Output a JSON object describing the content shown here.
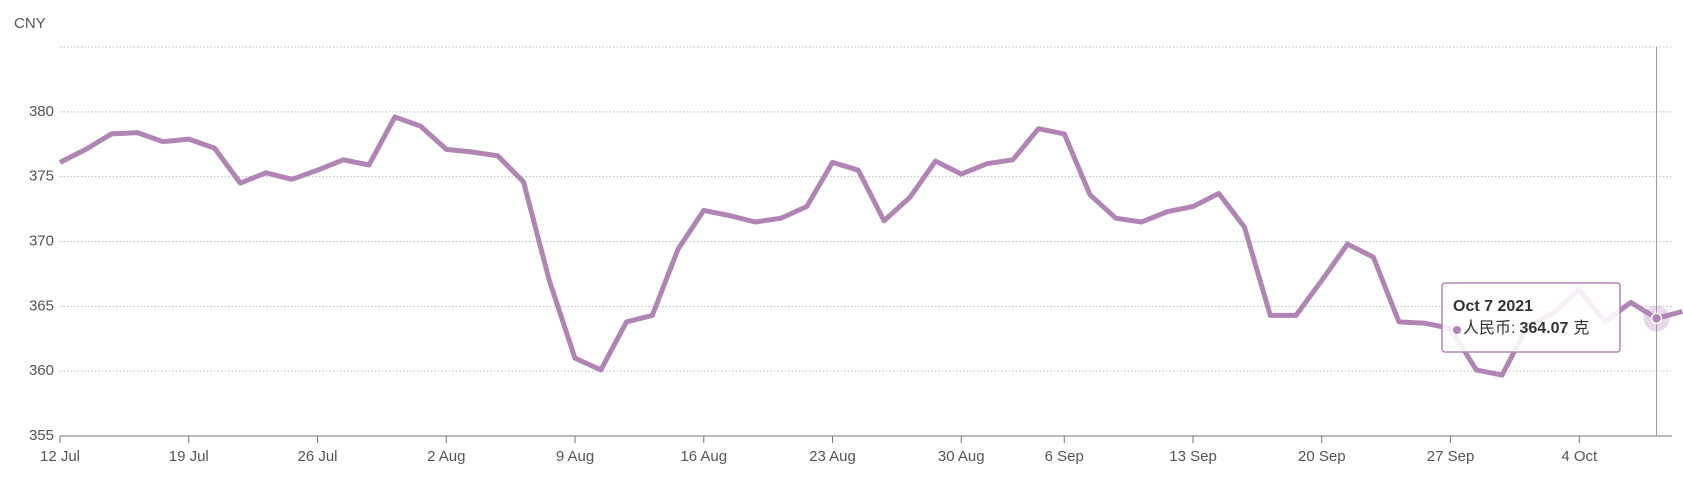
{
  "chart_data": {
    "type": "line",
    "y_label": "CNY",
    "color": "#b085b4",
    "categories": [
      "12 Jul",
      null,
      null,
      null,
      null,
      "19 Jul",
      null,
      null,
      null,
      null,
      "26 Jul",
      null,
      null,
      null,
      null,
      "2 Aug",
      null,
      null,
      null,
      null,
      "9 Aug",
      null,
      null,
      null,
      null,
      "16 Aug",
      null,
      null,
      null,
      null,
      "23 Aug",
      null,
      null,
      null,
      null,
      "30 Aug",
      null,
      null,
      null,
      "6 Sep",
      null,
      null,
      null,
      null,
      "13 Sep",
      null,
      null,
      null,
      null,
      "20 Sep",
      null,
      null,
      null,
      null,
      "27 Sep",
      null,
      null,
      null,
      null,
      "4 Oct",
      null,
      null,
      null,
      null
    ],
    "values": [
      376.1,
      377.1,
      378.3,
      378.4,
      377.7,
      377.9,
      377.2,
      374.5,
      375.3,
      374.8,
      375.5,
      376.3,
      375.9,
      379.6,
      378.9,
      377.1,
      376.9,
      376.6,
      374.6,
      367,
      361,
      360.1,
      363.8,
      364.3,
      369.4,
      372.4,
      372,
      371.5,
      371.8,
      372.7,
      376.1,
      375.5,
      371.6,
      373.4,
      376.2,
      375.2,
      376,
      376.3,
      378.7,
      378.3,
      373.6,
      371.8,
      371.5,
      372.3,
      372.7,
      373.7,
      371.1,
      364.3,
      364.3,
      367,
      369.8,
      368.8,
      363.8,
      363.7,
      363.3,
      360.1,
      359.7,
      363.5,
      364.5,
      366.3,
      363.8,
      365.3,
      364.07,
      364.6
    ],
    "ylim": [
      355,
      385
    ],
    "yticks": [
      355,
      360,
      365,
      370,
      375,
      380
    ],
    "grid": true,
    "tooltip": {
      "title": "Oct 7 2021",
      "label": "人民币:",
      "unit": "克",
      "index": 62
    }
  }
}
